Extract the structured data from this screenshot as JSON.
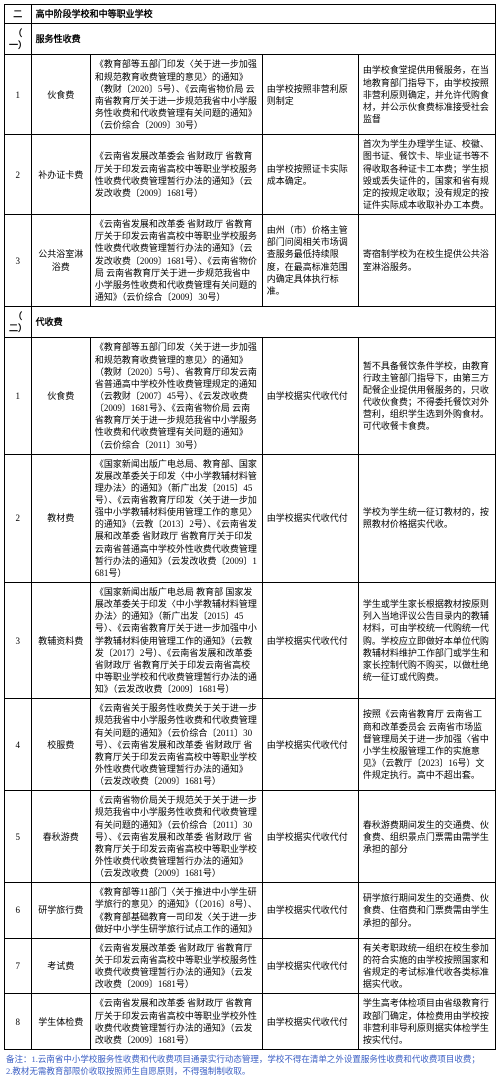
{
  "header": {
    "section_num": "二",
    "section_title": "高中阶段学校和中等职业学校"
  },
  "sub1": {
    "num": "（一）",
    "title": "服务性收费"
  },
  "sub2": {
    "num": "（二）",
    "title": "代收费"
  },
  "group1": {
    "rows": [
      {
        "idx": "1",
        "name": "伙食费",
        "basis": "《教育部等五部门印发〈关于进一步加强和规范教育收费管理的意见〉的通知》（教财〔2020〕5号）、《云南省物价局 云南省教育厅关于进一步规范我省中小学服务性收费和代收费管理有关问题的通知》（云价综合〔2009〕30号）",
        "approval": "由学校按照非营利原则制定",
        "remark": "由学校食堂提供用餐服务，在当地教育部门指导下，由学校按照非营利原则确定，并允许代购食材，并公示伙食费标准接受社会监督"
      },
      {
        "idx": "2",
        "name": "补办证卡费",
        "basis": "《云南省发展改革委会 省财政厅 省教育厅关于印发云南省高校中等职业学校服务性收费代收费管理暂行办法的通知》（云发改收费〔2009〕1681号）",
        "approval": "由学校按照证卡实际成本确定。",
        "remark": "首次为学生办理学生证、校徽、图书证、餐饮卡、毕业证书等不得收取各种证卡工本费；学生损毁或丢失证件的，国家和省有规定的按规定收取；没有规定的按证件实际成本收取补办工本费。"
      },
      {
        "idx": "3",
        "name": "公共浴室淋浴费",
        "basis": "《云南省发展和改革委 省财政厅 省教育厅关于印发云南省高校中等职业学校服务性收费代收费管理暂行办法的通知》（云发改收费〔2009〕1681号）、《云南省物价局 云南省教育厅关于进一步规范我省中小学服务性收费和代收费管理有关问题的通知》（云价综合〔2009〕30号）",
        "approval": "由州（市）价格主管部门问阅相关市场调查服务最低持续限度，在最高标准范围内确定具体执行标准。",
        "remark": "寄宿制学校为在校生提供公共浴室淋浴服务。"
      }
    ]
  },
  "group2": {
    "rows": [
      {
        "idx": "1",
        "name": "伙食费",
        "basis": "《教育部等五部门印发〈关于进一步加强和规范教育收费管理的意见〉的通知》（教财〔2020〕5号）、省教育厅印发云南省普通高中学校外性收费管理规定的通知（云教财〔2007〕45号）、《云发改收费〔2009〕1681号》、《云南省物价局 云南省教育厅关于进一步规范我省中小学服务性收费和代收费管理有关问题的通知》（云价综合〔2011〕30号）",
        "approval": "由学校据实代收代付",
        "remark": "暂不具备餐饮条件学校，由教育行政主管部门指导下，由第三方配餐企业提供用餐服务的，只收代收伙食费；不得委托餐饮对外营利，组织学生选到外购食材。可代收餐卡食费。"
      },
      {
        "idx": "2",
        "name": "教材费",
        "basis": "《国家新闻出版广电总局、教育部、国家发展改革委关于印发〈中小学教辅材料管理办法〉的通知》（新广出发〔2015〕45号）、《云南省教育厅印发〈关于进一步加强中小学教辅材料使用管理工作的意见〉的通知》（云教〔2013〕2号）、《云南省发展和改革委 省财政厅 省教育厅关于印发云南省普通高中学校外性收费代收费管理暂行办法的通知》（云发改收费〔2009〕1681号）",
        "approval": "由学校据实代收代付",
        "remark": "学校为学生统一征订教材的，按照教材价格据实代收。"
      },
      {
        "idx": "3",
        "name": "教辅资料费",
        "basis": "《国家新闻出版广电总局 教育部 国家发展改革委关于印发〈中小学教辅材料管理办法〉的通知》（新广出发〔2015〕45号）、《云南省教育厅关于进一步加强中小学教辅材料使用管理工作的通知》（云教发〔2017〕2号）、《云南省发展和改革委 省财政厅 省教育厅关于印发云南省高校中等职业学校和代收费管理暂行办法的通知》（云发改收费〔2009〕1681号）",
        "approval": "由学校据实代收代付",
        "remark": "学生或学生家长根据教材按原则列入当地评议公告目录内的教辅材料，可由学校统一代购统一代购。学校应立即做好本单位代购教辅材料维护工作部门或学生和家长控制代购不购买，以做杜绝统一征订或代购费。"
      },
      {
        "idx": "4",
        "name": "校服费",
        "basis": "《云南省关于服务性收费关于关于进一步规范我省中小学服务性收费和代收费管理有关问题的通知》（云价综合〔2011〕30号）、《云南省发展和改革委 省财政厅 省教育厅关于印发云南省高校中等职业学校外性收费代收费管理暂行办法的通知》（云发改收费〔2009〕1681号）",
        "approval": "由学校据实代收代付",
        "remark": "按照《云南省教育厅 云南省工商和改革委员会 云南省市场监督管理局关于进一步加强〈省中小学生校服管理工作的实施意见》（云教厅〔2023〕16号）文件规定执行。高中不超出套。"
      },
      {
        "idx": "5",
        "name": "春秋游费",
        "basis": "《云南省物价局关于规范关于关于进一步规范我省中小学服务性收费和代收费管理有关问题的通知》（云价综合〔2011〕30号）、《云南省发展和改革委 省财政厅 省教育厅关于印发云南省高校中等职业学校外性收费代收费管理暂行办法的通知》（云发改收费〔2009〕1681号）",
        "approval": "由学校据实代收代付",
        "remark": "春秋游费期间发生的交通费、伙食费、组织景点门票需由需学生承担的部分"
      },
      {
        "idx": "6",
        "name": "研学旅行费",
        "basis": "《教育部等11部门〈关于推进中小学生研学旅行的意见〉的通知》（〔2016〕8号）、《教育部基础教育一司印发〈关于进一步做好中小学生研学旅行试点工作的通知》",
        "approval": "由学校据实代收代付",
        "remark": "研学旅行期间发生的交通费、伙食费、住宿费和门票费需由学生承担的部分。"
      },
      {
        "idx": "7",
        "name": "考试费",
        "basis": "《云南省发展改革委 省财政厅 省教育厅关于印发云南省高校中等职业学校服务性收费代收费管理暂行办法的通知》（云发改收费〔2009〕1681号）",
        "approval": "由学校据实代收代付",
        "remark": "有关考职政统一组织在校生参加的符合实施的由学校按照国家和省规定的考试标准代收各类标准据实代收。"
      },
      {
        "idx": "8",
        "name": "学生体检费",
        "basis": "《云南省发展和改革委 省财政厅 省教育厅关于印发云南省高校中等职业学校外性收费代收费管理暂行办法的通知》（云发改收费〔2009〕1681号）",
        "approval": "由学校据实代收代付",
        "remark": "学生高考体检项目由省级教育行政部门确定，体检费用由学校按非营利非导利原则据实体检学生按实代付。"
      }
    ]
  },
  "notes": {
    "line1": "备注：1.云南省中小学校服务性收费和代收费项目通录实行动态管理，学校不得在清单之外设置服务性收费和代收费项目收费；",
    "line2": "2.教材无需教育部限价收取按照师生自愿原则，不得强制制收取。"
  },
  "style": {
    "border_color": "#000000",
    "bg": "#ffffff",
    "note_color": "#3b5fc4",
    "font_main": 9,
    "font_note": 8.5
  }
}
